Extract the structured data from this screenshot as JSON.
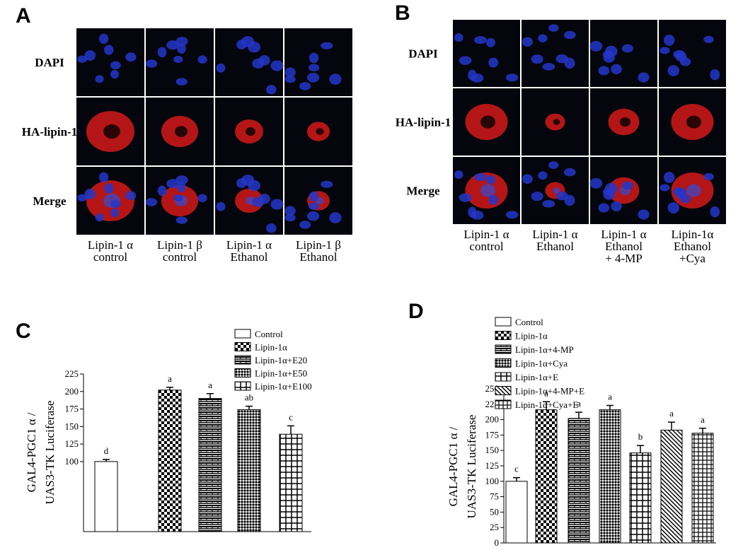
{
  "panel_a": {
    "label": "A",
    "rows": [
      "DAPI",
      "HA-lipin-1",
      "Merge"
    ],
    "columns": [
      [
        "Lipin-1 α",
        "control"
      ],
      [
        "Lipin-1 β",
        "control"
      ],
      [
        "Lipin-1 α",
        "Ethanol"
      ],
      [
        "Lipin-1 β",
        "Ethanol"
      ]
    ]
  },
  "panel_b": {
    "label": "B",
    "rows": [
      "DAPI",
      "HA-lipin-1",
      "Merge"
    ],
    "columns": [
      [
        "Lipin-1 α",
        "control"
      ],
      [
        "Lipin-1 α",
        "Ethanol"
      ],
      [
        "Lipin-1 α",
        "Ethanol",
        "+ 4-MP"
      ],
      [
        "Lipin-1α",
        "Ethanol",
        "+Cya"
      ]
    ]
  },
  "chart_data": [
    {
      "type": "bar",
      "panel": "C",
      "ylabel": [
        "GAL4-PGC1 α /",
        "UAS3-TK  Luciferase"
      ],
      "categories": [
        "Control",
        "Lipin-1α",
        "Lipin-1α+E20",
        "Lipin-1α+E50",
        "Lipin-1α+E100"
      ],
      "values": [
        100,
        202,
        190,
        174,
        139
      ],
      "errors": [
        3,
        4,
        7,
        5,
        12
      ],
      "annotations": [
        "d",
        "a",
        "a",
        "ab",
        "c"
      ],
      "ylim": [
        0,
        225
      ],
      "yticks": [
        100,
        125,
        150,
        175,
        200,
        225
      ],
      "color": "#000000"
    },
    {
      "type": "bar",
      "panel": "D",
      "ylabel": [
        "GAL4-PGC1 α /",
        "UAS3-TK  Luciferase"
      ],
      "categories": [
        "Control",
        "Lipin-1α",
        "Lipin-1α+4-MP",
        "Lipin-1α+Cya",
        "Lipin-1α+E",
        "Lipin-1α+4-MP+E",
        "Lipin-1α+Cya+E"
      ],
      "values": [
        100,
        216,
        202,
        216,
        146,
        183,
        178
      ],
      "errors": [
        6,
        13,
        10,
        7,
        12,
        13,
        8
      ],
      "annotations": [
        "c",
        "a",
        "a",
        "a",
        "b",
        "a",
        "a"
      ],
      "ylim": [
        0,
        250
      ],
      "yticks": [
        0,
        25,
        50,
        75,
        100,
        125,
        150,
        175,
        200,
        225,
        250
      ],
      "color": "#000000"
    }
  ]
}
